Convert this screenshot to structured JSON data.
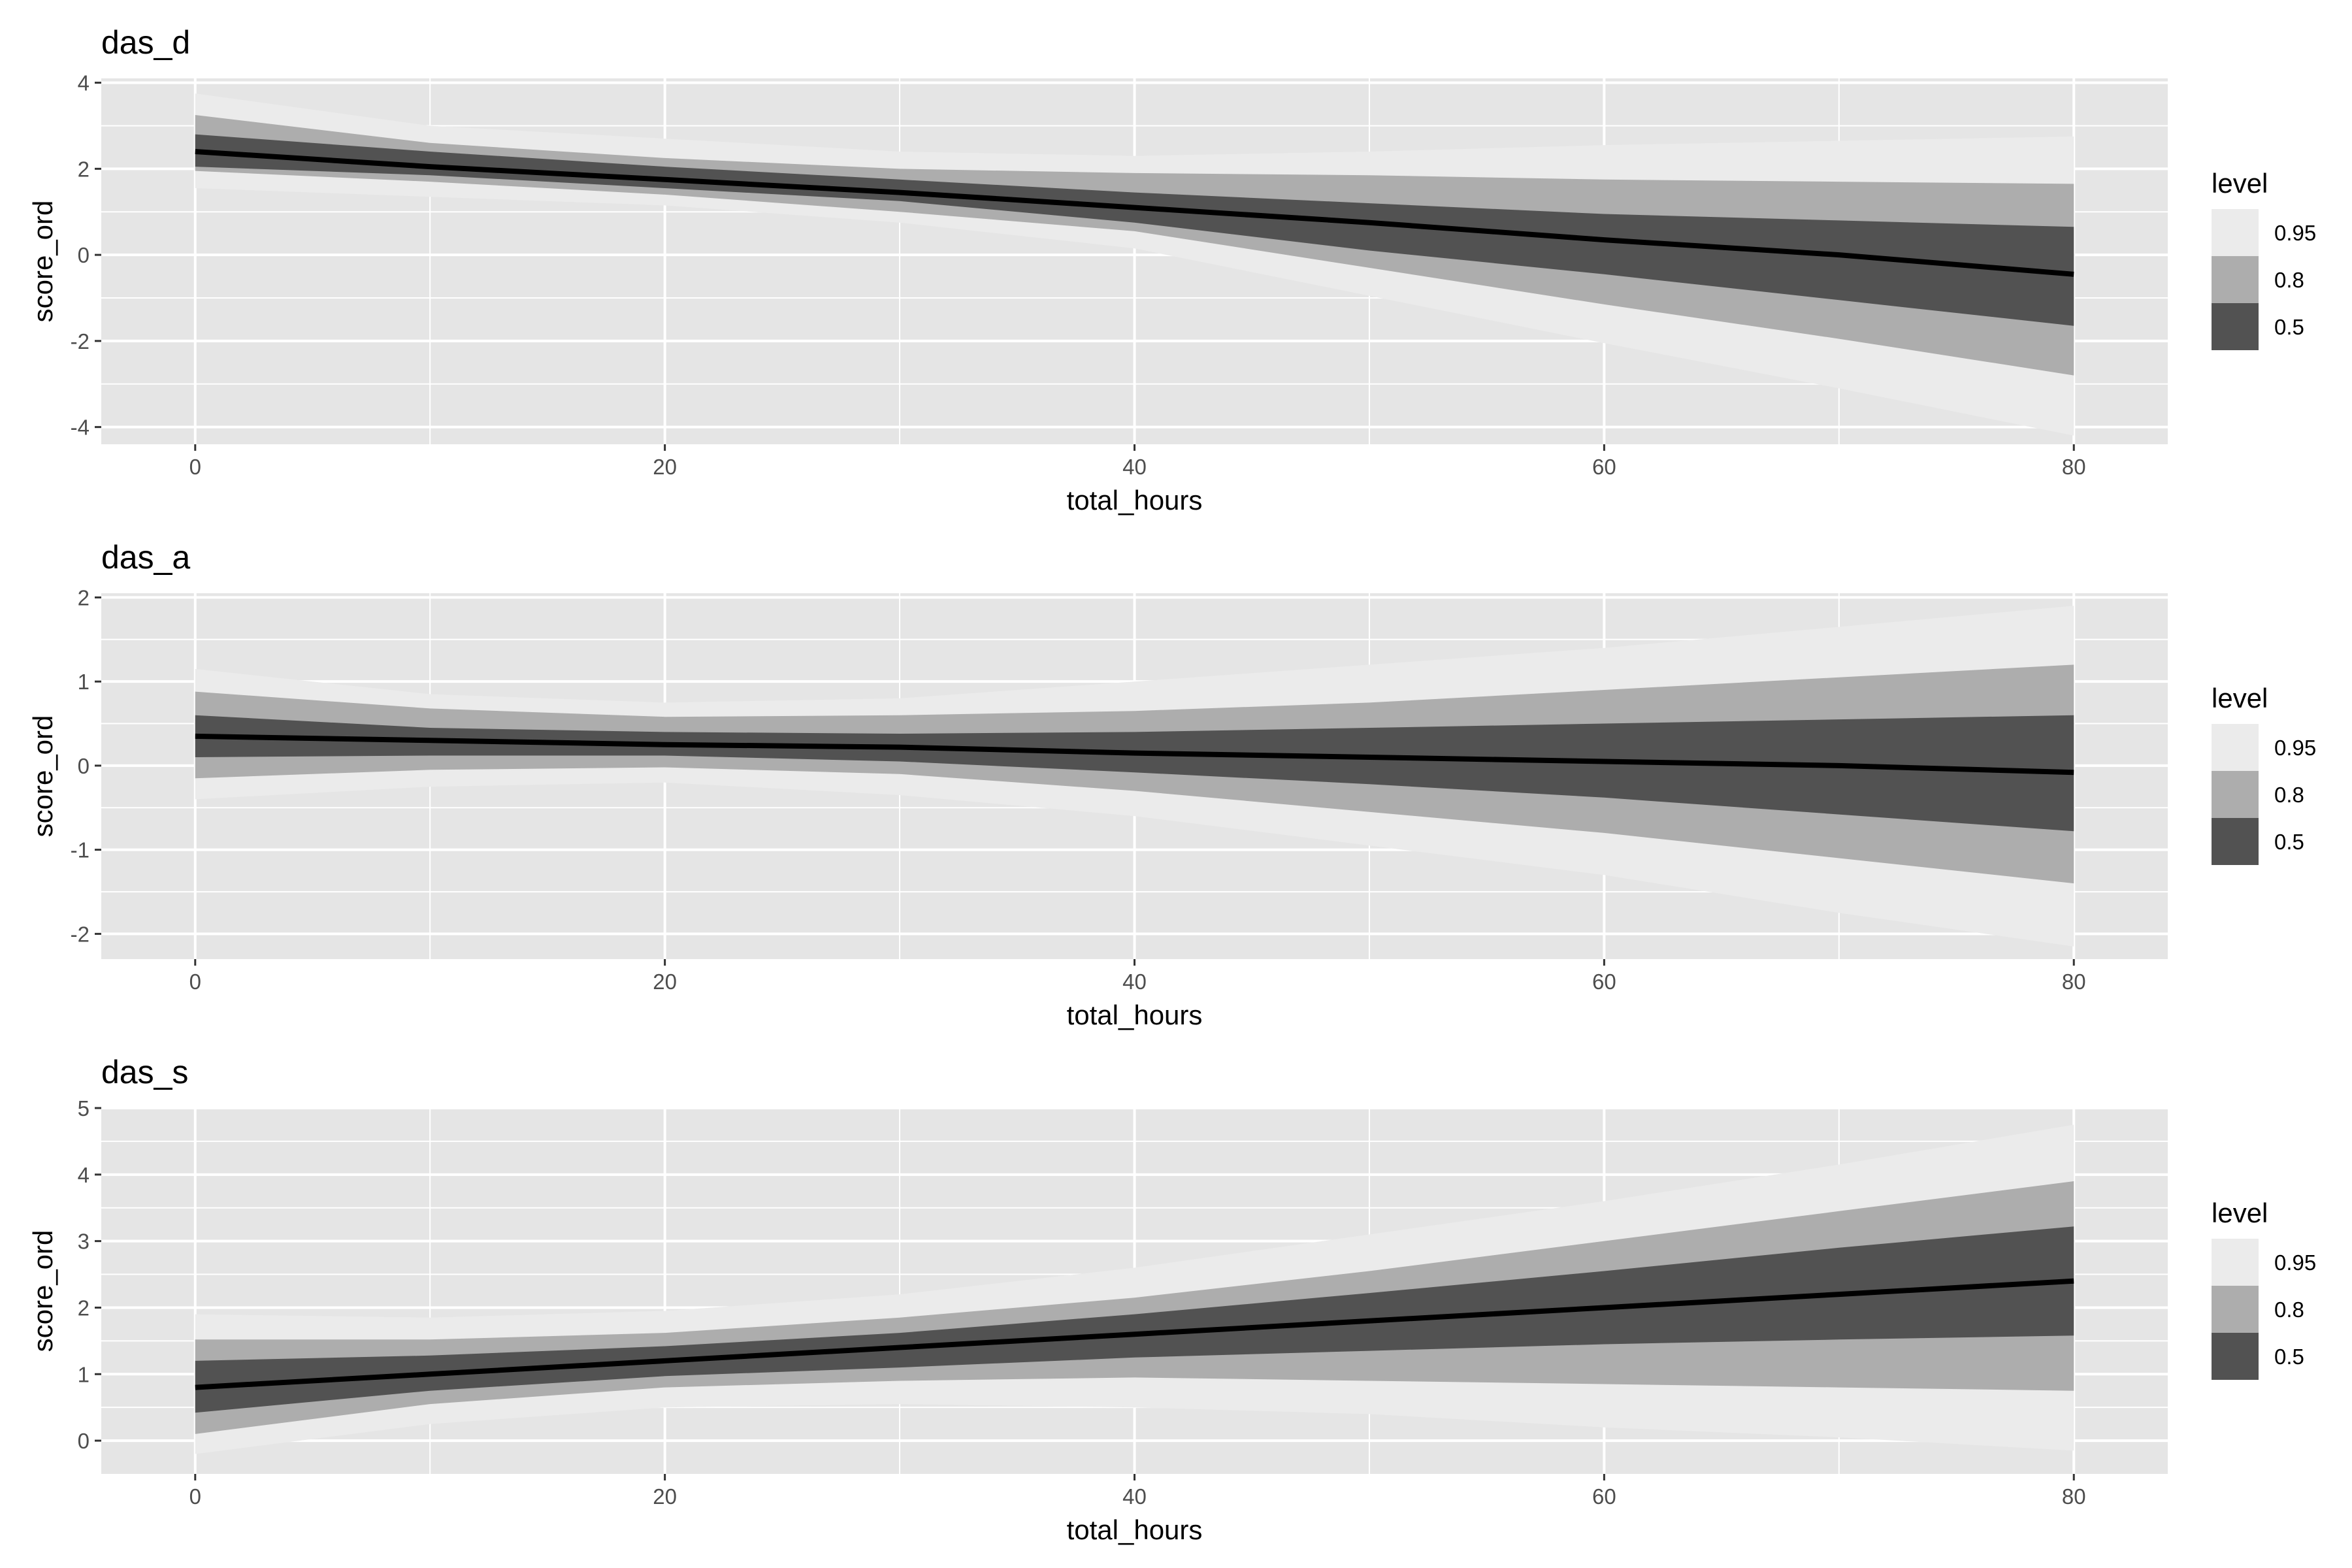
{
  "chart_data": [
    {
      "type": "area",
      "title": "das_d",
      "xlabel": "total_hours",
      "ylabel": "score_ord",
      "xlim": [
        -4,
        84
      ],
      "ylim": [
        -4.4,
        4.1
      ],
      "x_ticks": [
        0,
        20,
        40,
        60,
        80
      ],
      "y_ticks": [
        -4,
        -2,
        0,
        2,
        4
      ],
      "grid": true,
      "legend": {
        "title": "level",
        "position": "right",
        "entries": [
          "0.95",
          "0.8",
          "0.5"
        ]
      },
      "x": [
        0,
        10,
        20,
        30,
        40,
        50,
        60,
        70,
        80
      ],
      "median": [
        2.4,
        2.05,
        1.75,
        1.45,
        1.1,
        0.75,
        0.35,
        0.0,
        -0.45
      ],
      "bands": [
        {
          "level": "0.95",
          "lower": [
            1.55,
            1.35,
            1.15,
            0.75,
            0.15,
            -0.95,
            -2.05,
            -3.1,
            -4.2
          ],
          "upper": [
            3.75,
            3.0,
            2.7,
            2.4,
            2.3,
            2.4,
            2.55,
            2.65,
            2.75
          ]
        },
        {
          "level": "0.8",
          "lower": [
            1.95,
            1.7,
            1.4,
            1.0,
            0.55,
            -0.3,
            -1.15,
            -1.95,
            -2.8
          ],
          "upper": [
            3.25,
            2.6,
            2.25,
            2.0,
            1.9,
            1.85,
            1.75,
            1.7,
            1.65
          ]
        },
        {
          "level": "0.5",
          "lower": [
            2.05,
            1.85,
            1.55,
            1.25,
            0.75,
            0.1,
            -0.45,
            -1.05,
            -1.65
          ],
          "upper": [
            2.8,
            2.4,
            2.05,
            1.75,
            1.45,
            1.2,
            0.95,
            0.8,
            0.65
          ]
        }
      ]
    },
    {
      "type": "area",
      "title": "das_a",
      "xlabel": "total_hours",
      "ylabel": "score_ord",
      "xlim": [
        -4,
        84
      ],
      "ylim": [
        -2.3,
        2.05
      ],
      "x_ticks": [
        0,
        20,
        40,
        60,
        80
      ],
      "y_ticks": [
        -2,
        -1,
        0,
        1,
        2
      ],
      "grid": true,
      "legend": {
        "title": "level",
        "position": "right",
        "entries": [
          "0.95",
          "0.8",
          "0.5"
        ]
      },
      "x": [
        0,
        10,
        20,
        30,
        40,
        50,
        60,
        70,
        80
      ],
      "median": [
        0.35,
        0.3,
        0.25,
        0.22,
        0.15,
        0.1,
        0.05,
        0.0,
        -0.08
      ],
      "bands": [
        {
          "level": "0.95",
          "lower": [
            -0.4,
            -0.25,
            -0.2,
            -0.35,
            -0.6,
            -0.95,
            -1.3,
            -1.75,
            -2.15
          ],
          "upper": [
            1.15,
            0.85,
            0.75,
            0.8,
            1.0,
            1.2,
            1.4,
            1.65,
            1.9
          ]
        },
        {
          "level": "0.8",
          "lower": [
            -0.15,
            -0.05,
            -0.02,
            -0.1,
            -0.3,
            -0.55,
            -0.8,
            -1.1,
            -1.4
          ],
          "upper": [
            0.88,
            0.68,
            0.58,
            0.6,
            0.65,
            0.75,
            0.9,
            1.05,
            1.2
          ]
        },
        {
          "level": "0.5",
          "lower": [
            0.1,
            0.12,
            0.12,
            0.05,
            -0.08,
            -0.22,
            -0.38,
            -0.58,
            -0.78
          ],
          "upper": [
            0.6,
            0.45,
            0.4,
            0.38,
            0.4,
            0.45,
            0.5,
            0.55,
            0.6
          ]
        }
      ]
    },
    {
      "type": "area",
      "title": "das_s",
      "xlabel": "total_hours",
      "ylabel": "score_ord",
      "xlim": [
        -4,
        84
      ],
      "ylim": [
        -0.5,
        5.0
      ],
      "x_ticks": [
        0,
        20,
        40,
        60,
        80
      ],
      "y_ticks": [
        0,
        1,
        2,
        3,
        4,
        5
      ],
      "grid": true,
      "legend": {
        "title": "level",
        "position": "right",
        "entries": [
          "0.95",
          "0.8",
          "0.5"
        ]
      },
      "x": [
        0,
        10,
        20,
        30,
        40,
        50,
        60,
        70,
        80
      ],
      "median": [
        0.8,
        1.0,
        1.2,
        1.4,
        1.6,
        1.8,
        2.0,
        2.2,
        2.4
      ],
      "bands": [
        {
          "level": "0.95",
          "lower": [
            -0.2,
            0.25,
            0.5,
            0.55,
            0.5,
            0.4,
            0.2,
            0.05,
            -0.15
          ],
          "upper": [
            1.9,
            1.85,
            1.95,
            2.2,
            2.6,
            3.1,
            3.6,
            4.15,
            4.75
          ]
        },
        {
          "level": "0.8",
          "lower": [
            0.1,
            0.55,
            0.8,
            0.9,
            0.95,
            0.9,
            0.85,
            0.8,
            0.75
          ],
          "upper": [
            1.52,
            1.52,
            1.62,
            1.85,
            2.15,
            2.55,
            3.0,
            3.45,
            3.9
          ]
        },
        {
          "level": "0.5",
          "lower": [
            0.42,
            0.75,
            0.97,
            1.1,
            1.25,
            1.35,
            1.45,
            1.52,
            1.58
          ],
          "upper": [
            1.2,
            1.28,
            1.42,
            1.62,
            1.9,
            2.22,
            2.55,
            2.9,
            3.22
          ]
        }
      ]
    }
  ],
  "colors": {
    "panel_background": "#e5e5e5",
    "grid_line": "#ffffff",
    "band_0.95": "#ebebeb",
    "band_0.8": "#adadad",
    "band_0.5": "#525252",
    "median_line": "#000000"
  }
}
